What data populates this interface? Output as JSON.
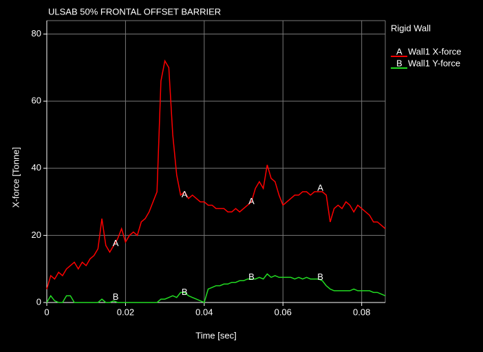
{
  "chart_data": {
    "type": "line",
    "title": "ULSAB 50% FRONTAL OFFSET BARRIER",
    "x_label": "Time [sec]",
    "y_label": "X-force [Tonne]",
    "legend_title": "Rigid Wall",
    "legend_position": "right",
    "grid": true,
    "xlim": [
      0,
      0.086
    ],
    "ylim": [
      0,
      84
    ],
    "xticks": [
      0,
      0.02,
      0.04,
      0.06,
      0.08
    ],
    "yticks": [
      0,
      20,
      40,
      60,
      80
    ],
    "x": [
      0,
      0.001,
      0.002,
      0.003,
      0.004,
      0.005,
      0.006,
      0.007,
      0.008,
      0.009,
      0.01,
      0.011,
      0.012,
      0.013,
      0.014,
      0.015,
      0.016,
      0.017,
      0.018,
      0.019,
      0.02,
      0.021,
      0.022,
      0.023,
      0.024,
      0.025,
      0.026,
      0.027,
      0.028,
      0.029,
      0.03,
      0.031,
      0.032,
      0.033,
      0.034,
      0.035,
      0.036,
      0.037,
      0.038,
      0.039,
      0.04,
      0.041,
      0.042,
      0.043,
      0.044,
      0.045,
      0.046,
      0.047,
      0.048,
      0.049,
      0.05,
      0.051,
      0.052,
      0.053,
      0.054,
      0.055,
      0.056,
      0.057,
      0.058,
      0.059,
      0.06,
      0.061,
      0.062,
      0.063,
      0.064,
      0.065,
      0.066,
      0.067,
      0.068,
      0.069,
      0.07,
      0.071,
      0.072,
      0.073,
      0.074,
      0.075,
      0.076,
      0.077,
      0.078,
      0.079,
      0.08,
      0.081,
      0.082,
      0.083,
      0.084,
      0.085,
      0.086
    ],
    "series": [
      {
        "name": "Wall1 X-force",
        "marker": "A",
        "color": "#ff0000",
        "values": [
          4,
          8,
          7,
          9,
          8,
          10,
          11,
          12,
          10,
          12,
          11,
          13,
          14,
          16,
          25,
          17,
          15,
          17,
          19,
          22,
          18,
          20,
          21,
          20,
          24,
          25,
          27,
          30,
          33,
          66,
          72,
          70,
          50,
          38,
          32,
          33,
          31,
          32,
          31,
          30,
          30,
          29,
          29,
          28,
          28,
          28,
          27,
          27,
          28,
          27,
          28,
          29,
          30,
          34,
          36,
          34,
          41,
          37,
          36,
          32,
          29,
          30,
          31,
          32,
          32,
          33,
          33,
          32,
          33,
          33,
          33,
          32,
          24,
          28,
          29,
          28,
          30,
          29,
          27,
          29,
          28,
          27,
          26,
          24,
          24,
          23,
          22
        ]
      },
      {
        "name": "Wall1 Y-force",
        "marker": "B",
        "color": "#22dd22",
        "values": [
          0,
          2,
          0.5,
          0,
          0,
          2,
          2,
          0,
          0,
          0,
          0,
          0,
          0,
          0,
          1,
          0,
          0,
          0.5,
          0,
          0,
          0,
          0,
          0,
          0,
          0,
          0,
          0,
          0,
          0,
          1,
          1,
          1.5,
          2,
          1.5,
          3,
          3,
          2,
          1.5,
          1,
          0.5,
          0,
          4,
          4.5,
          5,
          5,
          5.5,
          5.5,
          6,
          6,
          6.5,
          6.5,
          7,
          7,
          7,
          7.5,
          7,
          8.5,
          7.5,
          8,
          7.5,
          7.5,
          7.5,
          7.5,
          7,
          7.5,
          7,
          7.5,
          7,
          7,
          7,
          6.5,
          5,
          4,
          3.5,
          3.5,
          3.5,
          3.5,
          3.5,
          4,
          3.5,
          3.5,
          3.5,
          3.5,
          3,
          3,
          2.5,
          2
        ]
      }
    ],
    "annotations": [
      {
        "text": "A",
        "x": 0.0175,
        "y": 17.5
      },
      {
        "text": "A",
        "x": 0.035,
        "y": 32
      },
      {
        "text": "A",
        "x": 0.052,
        "y": 30
      },
      {
        "text": "A",
        "x": 0.0695,
        "y": 34
      },
      {
        "text": "B",
        "x": 0.0175,
        "y": 1.5
      },
      {
        "text": "B",
        "x": 0.035,
        "y": 3
      },
      {
        "text": "B",
        "x": 0.052,
        "y": 7.5
      },
      {
        "text": "B",
        "x": 0.0695,
        "y": 7.5
      }
    ]
  }
}
